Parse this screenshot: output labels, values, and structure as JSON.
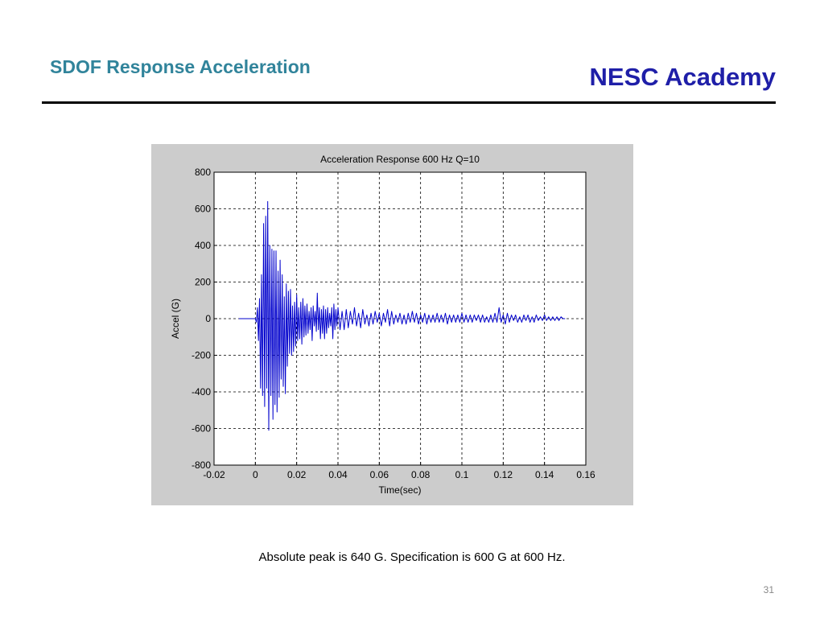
{
  "slide": {
    "title": "SDOF Response Acceleration",
    "brand": "NESC Academy",
    "caption": "Absolute peak is 640 G.   Specification is   600 G at 600 Hz.",
    "page_number": "31"
  },
  "colors": {
    "title": "#31849b",
    "brand": "#1f1fa8",
    "series": "#0000cc",
    "figure_background": "#cccccc",
    "plot_background": "#ffffff"
  },
  "chart_data": {
    "type": "line",
    "title": "Acceleration Response 600 Hz  Q=10",
    "xlabel": "Time(sec)",
    "ylabel": "Accel (G)",
    "xlim": [
      -0.02,
      0.16
    ],
    "ylim": [
      -800,
      800
    ],
    "xticks": [
      -0.02,
      0,
      0.02,
      0.04,
      0.06,
      0.08,
      0.1,
      0.12,
      0.14,
      0.16
    ],
    "xtick_labels": [
      "-0.02",
      "0",
      "0.02",
      "0.04",
      "0.06",
      "0.08",
      "0.1",
      "0.12",
      "0.14",
      "0.16"
    ],
    "yticks": [
      800,
      600,
      400,
      200,
      0,
      -200,
      -400,
      -600,
      -800
    ],
    "ytick_labels": [
      "800",
      "600",
      "400",
      "200",
      "0",
      "-200",
      "-400",
      "-600",
      "-800"
    ],
    "grid": true,
    "grid_style": "dashed",
    "peak": 640,
    "series": [
      {
        "color": "#0000cc",
        "x": [
          -0.008,
          0.0,
          0.0005,
          0.001,
          0.0015,
          0.002,
          0.0025,
          0.003,
          0.0035,
          0.004,
          0.0045,
          0.005,
          0.0055,
          0.006,
          0.0065,
          0.007,
          0.0075,
          0.008,
          0.0085,
          0.009,
          0.0095,
          0.01,
          0.0105,
          0.011,
          0.0115,
          0.012,
          0.0125,
          0.013,
          0.0135,
          0.014,
          0.0145,
          0.015,
          0.0155,
          0.016,
          0.0165,
          0.017,
          0.0175,
          0.018,
          0.0185,
          0.019,
          0.0195,
          0.02,
          0.0205,
          0.021,
          0.0215,
          0.022,
          0.0225,
          0.023,
          0.0235,
          0.024,
          0.0245,
          0.025,
          0.0255,
          0.026,
          0.0265,
          0.027,
          0.0275,
          0.028,
          0.0285,
          0.029,
          0.0295,
          0.03,
          0.0305,
          0.031,
          0.0315,
          0.032,
          0.0325,
          0.033,
          0.0335,
          0.034,
          0.0345,
          0.035,
          0.0355,
          0.036,
          0.0365,
          0.037,
          0.0375,
          0.038,
          0.0385,
          0.039,
          0.0395,
          0.04,
          0.041,
          0.042,
          0.043,
          0.044,
          0.045,
          0.046,
          0.047,
          0.048,
          0.049,
          0.05,
          0.051,
          0.052,
          0.053,
          0.054,
          0.055,
          0.056,
          0.057,
          0.058,
          0.059,
          0.06,
          0.061,
          0.062,
          0.063,
          0.064,
          0.065,
          0.066,
          0.067,
          0.068,
          0.069,
          0.07,
          0.071,
          0.072,
          0.073,
          0.074,
          0.075,
          0.076,
          0.077,
          0.078,
          0.079,
          0.08,
          0.081,
          0.082,
          0.083,
          0.084,
          0.085,
          0.086,
          0.087,
          0.088,
          0.089,
          0.09,
          0.091,
          0.092,
          0.093,
          0.094,
          0.095,
          0.096,
          0.097,
          0.098,
          0.099,
          0.1,
          0.101,
          0.102,
          0.103,
          0.104,
          0.105,
          0.106,
          0.107,
          0.108,
          0.109,
          0.11,
          0.111,
          0.112,
          0.113,
          0.114,
          0.115,
          0.116,
          0.117,
          0.118,
          0.119,
          0.12,
          0.121,
          0.122,
          0.123,
          0.124,
          0.125,
          0.126,
          0.127,
          0.128,
          0.129,
          0.13,
          0.131,
          0.132,
          0.133,
          0.134,
          0.135,
          0.136,
          0.137,
          0.138,
          0.139,
          0.14,
          0.141,
          0.142,
          0.143,
          0.144,
          0.145,
          0.146,
          0.147,
          0.148,
          0.149,
          0.15
        ],
        "y": [
          0,
          0,
          -20,
          60,
          -120,
          110,
          -380,
          240,
          -420,
          520,
          -480,
          560,
          -380,
          640,
          -610,
          400,
          -420,
          380,
          -550,
          370,
          -470,
          370,
          -510,
          260,
          -430,
          320,
          -330,
          240,
          -370,
          120,
          -410,
          190,
          -260,
          150,
          -190,
          160,
          -200,
          70,
          -180,
          90,
          -150,
          130,
          -120,
          60,
          -110,
          90,
          -140,
          110,
          -100,
          70,
          -90,
          80,
          -80,
          40,
          -60,
          60,
          -120,
          70,
          -40,
          40,
          -70,
          140,
          -60,
          60,
          -110,
          50,
          -80,
          70,
          -110,
          50,
          -80,
          60,
          -50,
          30,
          -40,
          60,
          -110,
          80,
          -60,
          50,
          -40,
          60,
          -60,
          40,
          -60,
          50,
          -50,
          40,
          -30,
          60,
          -40,
          30,
          -50,
          50,
          -30,
          20,
          -40,
          30,
          -30,
          40,
          -20,
          30,
          -40,
          30,
          -20,
          50,
          -40,
          40,
          -30,
          20,
          -20,
          30,
          -30,
          20,
          -30,
          30,
          -20,
          40,
          -20,
          30,
          -30,
          20,
          -20,
          30,
          -30,
          20,
          -20,
          20,
          -20,
          30,
          -20,
          20,
          -20,
          30,
          -30,
          20,
          -20,
          20,
          -20,
          20,
          -20,
          30,
          -20,
          20,
          -20,
          20,
          -20,
          20,
          -10,
          20,
          -20,
          20,
          -20,
          10,
          -20,
          20,
          -20,
          30,
          -20,
          60,
          -20,
          20,
          -30,
          30,
          -20,
          20,
          -10,
          20,
          -20,
          10,
          -20,
          20,
          -10,
          20,
          -20,
          10,
          -20,
          20,
          -10,
          10,
          -10,
          20,
          -10,
          10,
          -10,
          10,
          -10,
          10,
          -10,
          10,
          0,
          0
        ]
      }
    ]
  }
}
